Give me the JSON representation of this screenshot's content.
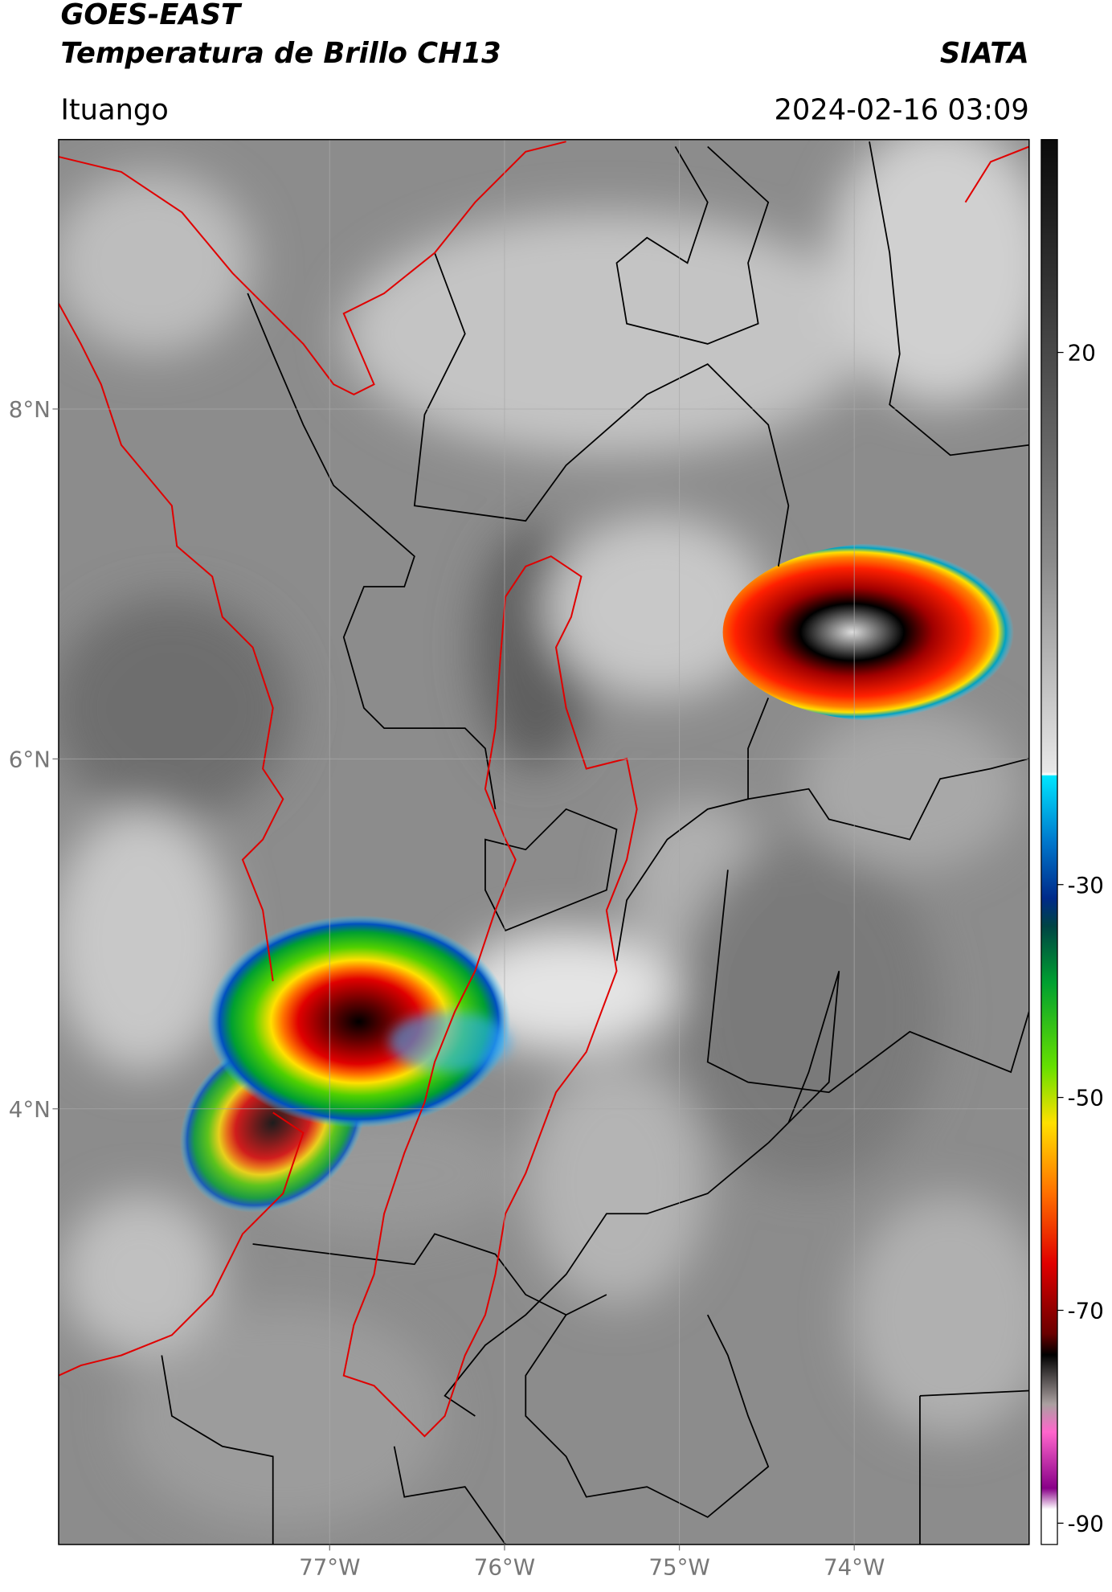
{
  "header": {
    "title": "GOES-EAST",
    "subtitle": "Temperatura de Brillo CH13",
    "brand": "SIATA",
    "location": "Ituango",
    "datetime": "2024-02-16 03:09"
  },
  "map": {
    "xlim": [
      -78.55,
      -73.0
    ],
    "ylim": [
      1.51,
      9.54
    ],
    "xticks": [
      {
        "value": -77,
        "label": "77°W"
      },
      {
        "value": -76,
        "label": "76°W"
      },
      {
        "value": -75,
        "label": "75°W"
      },
      {
        "value": -74,
        "label": "74°W"
      }
    ],
    "yticks": [
      {
        "value": 4,
        "label": "4°N"
      },
      {
        "value": 6,
        "label": "6°N"
      },
      {
        "value": 8,
        "label": "8°N"
      }
    ],
    "grid": true
  },
  "colorbar": {
    "lim": [
      -92,
      40
    ],
    "ticks": [
      20,
      -30,
      -50,
      -70,
      -90
    ]
  }
}
